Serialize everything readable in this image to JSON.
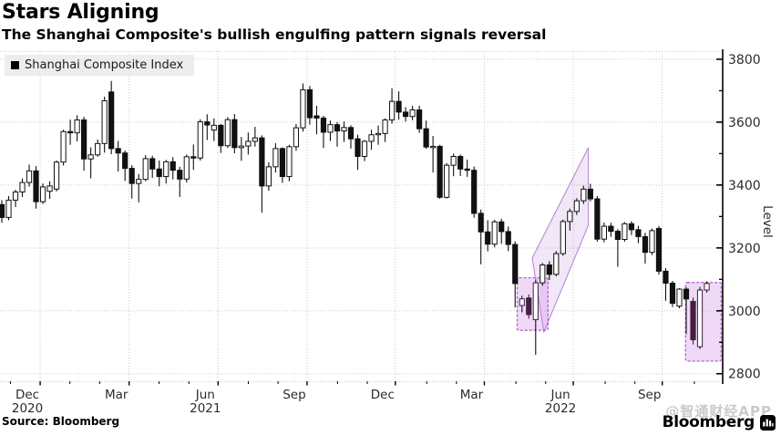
{
  "header": {
    "title": "Stars Aligning",
    "subtitle": "The Shanghai Composite's bullish engulfing pattern signals reversal"
  },
  "legend": {
    "label": "Shanghai Composite Index",
    "swatch_color": "#000000"
  },
  "footer": {
    "source": "Source: Bloomberg",
    "watermark": "@智通财经APP",
    "logo_text": "Bloomberg"
  },
  "chart_data": {
    "type": "candlestick",
    "title": "Stars Aligning",
    "subtitle": "The Shanghai Composite's bullish engulfing pattern signals reversal",
    "series_name": "Shanghai Composite Index",
    "frequency": "weekly",
    "ylabel": "Level",
    "y_ticks": [
      2800,
      3000,
      3200,
      3400,
      3600,
      3800
    ],
    "y_minor_ticks": [
      2900,
      3100,
      3300,
      3500,
      3700
    ],
    "y_range": [
      2776,
      3826
    ],
    "grid": true,
    "legend_position": "top-left",
    "x_quarter_ticks": [
      {
        "label": "Dec",
        "year": "2020",
        "week": 5.6
      },
      {
        "label": "Mar",
        "year": "",
        "week": 18.6
      },
      {
        "label": "Jun",
        "year": "2021",
        "week": 31.6
      },
      {
        "label": "Sep",
        "year": "",
        "week": 44.6
      },
      {
        "label": "Dec",
        "year": "",
        "week": 57.5
      },
      {
        "label": "Mar",
        "year": "",
        "week": 70.5
      },
      {
        "label": "Jun",
        "year": "2022",
        "week": 83.5
      },
      {
        "label": "Sep",
        "year": "",
        "week": 96.5
      }
    ],
    "candles_format": "[open, high, low, close, flag] flag: 0=normal 1=purple-filled 2=purple-outlined",
    "candles": [
      [
        3338,
        3352,
        3280,
        3297
      ],
      [
        3297,
        3365,
        3288,
        3352
      ],
      [
        3352,
        3385,
        3330,
        3378
      ],
      [
        3378,
        3421,
        3362,
        3408
      ],
      [
        3408,
        3465,
        3395,
        3445
      ],
      [
        3445,
        3460,
        3325,
        3347
      ],
      [
        3347,
        3405,
        3340,
        3394
      ],
      [
        3380,
        3412,
        3356,
        3397
      ],
      [
        3387,
        3478,
        3380,
        3473
      ],
      [
        3473,
        3576,
        3462,
        3570
      ],
      [
        3570,
        3608,
        3528,
        3566
      ],
      [
        3566,
        3622,
        3539,
        3607
      ],
      [
        3607,
        3617,
        3446,
        3483
      ],
      [
        3483,
        3520,
        3421,
        3496
      ],
      [
        3496,
        3545,
        3490,
        3532
      ],
      [
        3532,
        3681,
        3503,
        3668
      ],
      [
        3696,
        3731,
        3498,
        3516
      ],
      [
        3516,
        3540,
        3443,
        3502
      ],
      [
        3502,
        3510,
        3413,
        3453
      ],
      [
        3453,
        3463,
        3357,
        3405
      ],
      [
        3405,
        3435,
        3345,
        3418
      ],
      [
        3418,
        3495,
        3412,
        3484
      ],
      [
        3484,
        3493,
        3423,
        3451
      ],
      [
        3451,
        3478,
        3396,
        3427
      ],
      [
        3427,
        3480,
        3405,
        3474
      ],
      [
        3474,
        3489,
        3418,
        3447
      ],
      [
        3447,
        3458,
        3362,
        3419
      ],
      [
        3419,
        3497,
        3408,
        3490
      ],
      [
        3490,
        3529,
        3448,
        3486
      ],
      [
        3486,
        3609,
        3478,
        3601
      ],
      [
        3601,
        3625,
        3543,
        3591
      ],
      [
        3575,
        3612,
        3540,
        3590
      ],
      [
        3590,
        3594,
        3502,
        3525
      ],
      [
        3525,
        3616,
        3518,
        3608
      ],
      [
        3608,
        3626,
        3501,
        3519
      ],
      [
        3519,
        3553,
        3477,
        3524
      ],
      [
        3524,
        3567,
        3497,
        3539
      ],
      [
        3539,
        3585,
        3522,
        3550
      ],
      [
        3550,
        3558,
        3312,
        3397
      ],
      [
        3397,
        3472,
        3382,
        3458
      ],
      [
        3458,
        3533,
        3440,
        3516
      ],
      [
        3516,
        3520,
        3407,
        3427
      ],
      [
        3427,
        3528,
        3412,
        3522
      ],
      [
        3522,
        3594,
        3509,
        3582
      ],
      [
        3582,
        3723,
        3570,
        3703
      ],
      [
        3703,
        3715,
        3592,
        3614
      ],
      [
        3620,
        3652,
        3561,
        3613
      ],
      [
        3613,
        3620,
        3518,
        3568
      ],
      [
        3568,
        3605,
        3540,
        3592
      ],
      [
        3592,
        3600,
        3522,
        3572
      ],
      [
        3572,
        3602,
        3537,
        3583
      ],
      [
        3583,
        3590,
        3516,
        3547
      ],
      [
        3547,
        3560,
        3448,
        3491
      ],
      [
        3491,
        3543,
        3476,
        3539
      ],
      [
        3539,
        3576,
        3512,
        3560
      ],
      [
        3560,
        3589,
        3528,
        3564
      ],
      [
        3564,
        3612,
        3537,
        3607
      ],
      [
        3607,
        3708,
        3595,
        3666
      ],
      [
        3666,
        3698,
        3608,
        3632
      ],
      [
        3632,
        3648,
        3602,
        3618
      ],
      [
        3618,
        3652,
        3606,
        3639
      ],
      [
        3639,
        3652,
        3566,
        3579
      ],
      [
        3579,
        3605,
        3515,
        3521
      ],
      [
        3521,
        3556,
        3440,
        3523
      ],
      [
        3523,
        3528,
        3356,
        3361
      ],
      [
        3361,
        3470,
        3357,
        3463
      ],
      [
        3463,
        3500,
        3428,
        3491
      ],
      [
        3491,
        3497,
        3429,
        3451
      ],
      [
        3451,
        3481,
        3426,
        3447
      ],
      [
        3447,
        3459,
        3296,
        3310
      ],
      [
        3310,
        3322,
        3148,
        3251
      ],
      [
        3251,
        3288,
        3189,
        3212
      ],
      [
        3212,
        3290,
        3202,
        3283
      ],
      [
        3283,
        3293,
        3213,
        3252
      ],
      [
        3252,
        3268,
        3190,
        3211
      ],
      [
        3211,
        3221,
        3011,
        3087
      ],
      [
        3017,
        3048,
        2995,
        3038,
        2
      ],
      [
        3041,
        3052,
        2975,
        2988,
        1
      ],
      [
        2972,
        3099,
        2860,
        3089,
        2
      ],
      [
        3089,
        3152,
        3080,
        3146
      ],
      [
        3146,
        3158,
        3098,
        3116
      ],
      [
        3116,
        3190,
        3110,
        3182
      ],
      [
        3182,
        3290,
        3175,
        3284
      ],
      [
        3284,
        3325,
        3255,
        3316
      ],
      [
        3316,
        3358,
        3305,
        3350
      ],
      [
        3350,
        3398,
        3340,
        3387
      ],
      [
        3387,
        3404,
        3348,
        3356
      ],
      [
        3356,
        3365,
        3220,
        3228
      ],
      [
        3228,
        3281,
        3218,
        3269
      ],
      [
        3269,
        3280,
        3235,
        3253
      ],
      [
        3253,
        3260,
        3140,
        3227
      ],
      [
        3227,
        3282,
        3220,
        3277
      ],
      [
        3277,
        3285,
        3241,
        3258
      ],
      [
        3258,
        3270,
        3215,
        3236
      ],
      [
        3236,
        3248,
        3150,
        3186
      ],
      [
        3186,
        3262,
        3177,
        3255
      ],
      [
        3262,
        3270,
        3115,
        3126
      ],
      [
        3126,
        3136,
        3032,
        3088
      ],
      [
        3088,
        3095,
        3012,
        3024
      ],
      [
        3015,
        3072,
        3008,
        3069
      ],
      [
        3069,
        3075,
        2926,
        3038
      ],
      [
        3030,
        3042,
        2893,
        2908,
        1
      ],
      [
        2886,
        3076,
        2879,
        3066,
        2
      ],
      [
        3066,
        3094,
        3058,
        3087,
        2
      ]
    ],
    "annotations": {
      "channel": {
        "points_week_value": [
          [
            77.5,
            3168
          ],
          [
            85.7,
            3519
          ],
          [
            85.7,
            3272
          ],
          [
            79.2,
            2933
          ]
        ],
        "fill": "rgba(186,134,216,0.20)",
        "stroke": "#b87fd4"
      },
      "boxes": [
        {
          "week_from": 75.3,
          "week_to": 79.8,
          "value_top": 3105,
          "value_bottom": 2938
        },
        {
          "week_from": 99.9,
          "week_to": 105.1,
          "value_top": 3090,
          "value_bottom": 2840
        }
      ],
      "box_style": {
        "fill": "rgba(205,130,227,0.30)",
        "stroke": "#b153cf"
      }
    },
    "colors": {
      "up_fill": "#ffffff",
      "down_fill": "#111111",
      "outline": "#111111",
      "highlight_candle": "#44203f",
      "highlight_outline": "#3a1f3f",
      "grid": "#c9c9c9",
      "axis": "#000000",
      "tick_label": "#2b2b2b"
    }
  }
}
